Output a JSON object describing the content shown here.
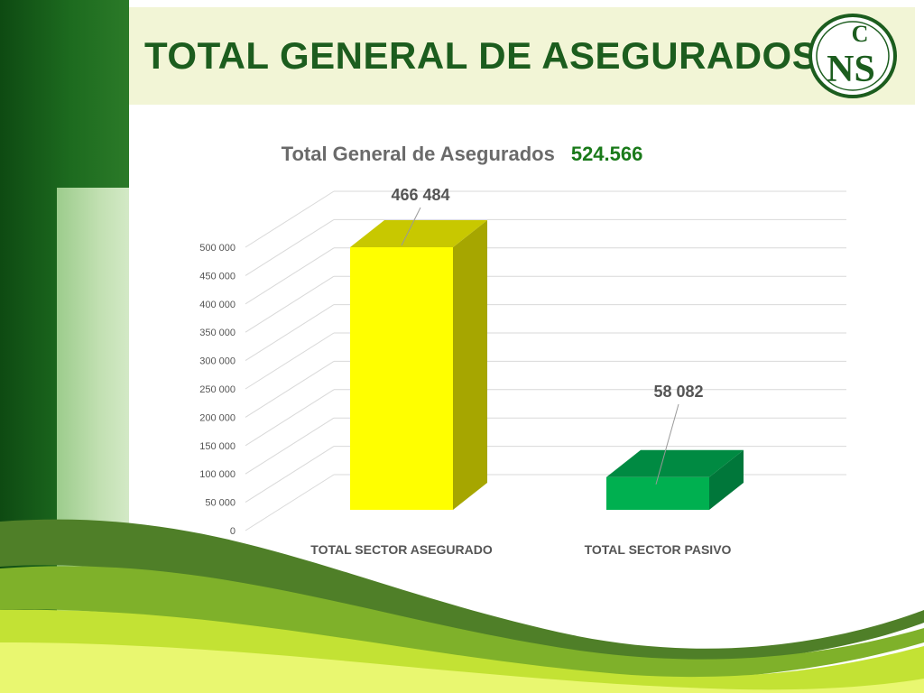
{
  "slide": {
    "title": "TOTAL GENERAL DE ASEGURADOS",
    "logo_text": {
      "top": "C",
      "bottom": "NS"
    }
  },
  "colors": {
    "title_green": "#1c5d1e",
    "bar_asegurado_front": "#ffff00",
    "bar_asegurado_side": "#a6a600",
    "bar_pasivo_front": "#00b050",
    "bar_pasivo_side": "#00773a"
  },
  "chart_data": {
    "type": "bar",
    "title": "Total General de Asegurados",
    "title_value": "524.566",
    "categories": [
      "TOTAL SECTOR ASEGURADO",
      "TOTAL SECTOR PASIVO"
    ],
    "values": [
      466484,
      58082
    ],
    "data_labels": [
      "466 484",
      "58 082"
    ],
    "ylim": [
      0,
      500000
    ],
    "yticks": [
      0,
      50000,
      100000,
      150000,
      200000,
      250000,
      300000,
      350000,
      400000,
      450000,
      500000
    ],
    "ytick_labels": [
      "0",
      "50 000",
      "100 000",
      "150 000",
      "200 000",
      "250 000",
      "300 000",
      "350 000",
      "400 000",
      "450 000",
      "500 000"
    ],
    "grid": true,
    "legend": "none",
    "style": "3d-column"
  }
}
